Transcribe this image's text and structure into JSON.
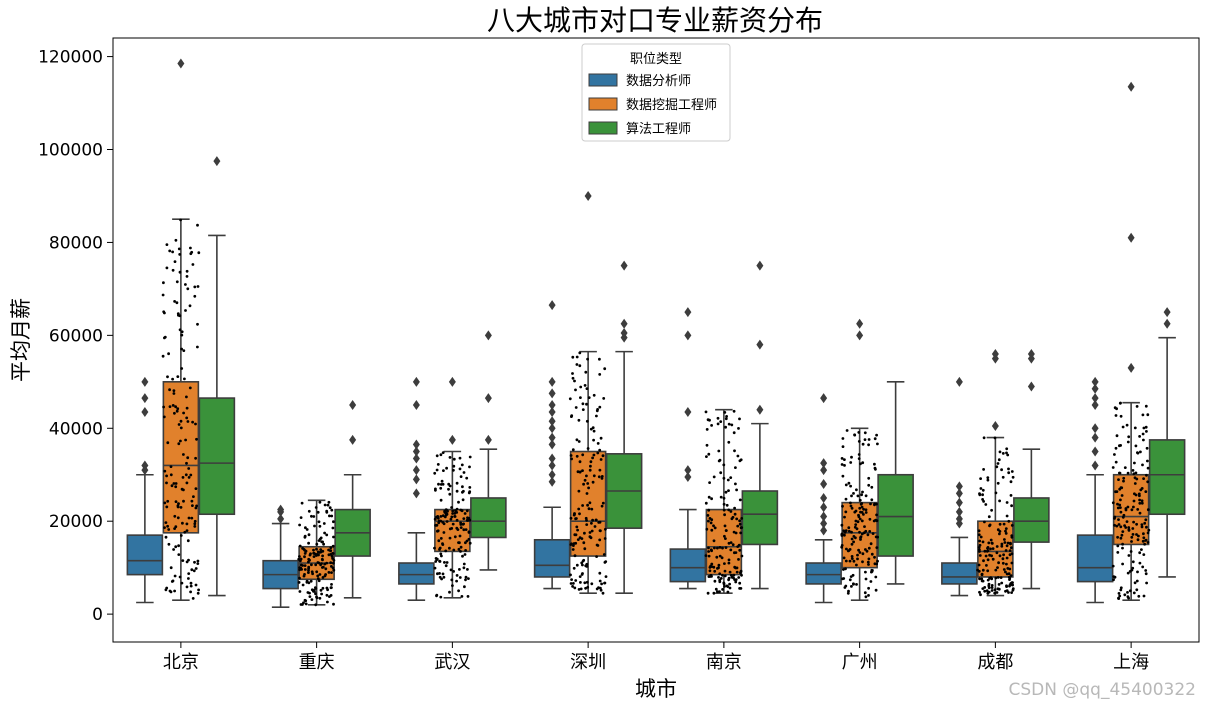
{
  "chart_data": {
    "type": "box",
    "title": "八大城市对口专业薪资分布",
    "xlabel": "城市",
    "ylabel": "平均月薪",
    "categories": [
      "北京",
      "重庆",
      "武汉",
      "深圳",
      "南京",
      "广州",
      "成都",
      "上海"
    ],
    "ylim": [
      -6000,
      124000
    ],
    "yticks": [
      0,
      20000,
      40000,
      60000,
      80000,
      100000,
      120000
    ],
    "legend": {
      "title": "职位类型",
      "position": "top-center"
    },
    "grid": false,
    "series": [
      {
        "name": "数据分析师",
        "color": "#3274a1",
        "boxes": [
          {
            "whislo": 2500,
            "q1": 8500,
            "med": 11500,
            "q3": 17000,
            "whishi": 30000,
            "fliers": [
              31000,
              32000,
              43500,
              46500,
              50000
            ]
          },
          {
            "whislo": 1500,
            "q1": 5500,
            "med": 8500,
            "q3": 11500,
            "whishi": 19500,
            "fliers": [
              20500,
              22000,
              22500
            ]
          },
          {
            "whislo": 3000,
            "q1": 6500,
            "med": 8500,
            "q3": 11000,
            "whishi": 17500,
            "fliers": [
              26000,
              29000,
              31000,
              33500,
              35000,
              36500,
              45000,
              50000
            ]
          },
          {
            "whislo": 5500,
            "q1": 8000,
            "med": 10500,
            "q3": 16000,
            "whishi": 23000,
            "fliers": [
              28500,
              30000,
              32000,
              33500,
              36500,
              38000,
              40000,
              41500,
              43500,
              45000,
              47500,
              50000,
              66500
            ]
          },
          {
            "whislo": 5500,
            "q1": 7000,
            "med": 10000,
            "q3": 14000,
            "whishi": 22500,
            "fliers": [
              29500,
              31000,
              43500,
              60000,
              65000
            ]
          },
          {
            "whislo": 2500,
            "q1": 6500,
            "med": 8500,
            "q3": 11000,
            "whishi": 16000,
            "fliers": [
              18000,
              19500,
              21000,
              23000,
              25000,
              28000,
              31000,
              32500,
              46500
            ]
          },
          {
            "whislo": 4000,
            "q1": 6500,
            "med": 8000,
            "q3": 11000,
            "whishi": 16500,
            "fliers": [
              19500,
              20500,
              22000,
              24000,
              26000,
              27500,
              50000
            ]
          },
          {
            "whislo": 2500,
            "q1": 7000,
            "med": 10000,
            "q3": 17000,
            "whishi": 30000,
            "fliers": [
              32000,
              35000,
              38000,
              40000,
              45000,
              46500,
              48500,
              50000
            ]
          }
        ]
      },
      {
        "name": "数据挖掘工程师",
        "color": "#e1812c",
        "boxes": [
          {
            "whislo": 3000,
            "q1": 17500,
            "med": 32000,
            "q3": 50000,
            "whishi": 85000,
            "fliers": [
              118500
            ]
          },
          {
            "whislo": 2000,
            "q1": 7500,
            "med": 11000,
            "q3": 14500,
            "whishi": 24500,
            "fliers": []
          },
          {
            "whislo": 3500,
            "q1": 13500,
            "med": 20000,
            "q3": 22500,
            "whishi": 35000,
            "fliers": [
              37500,
              50000
            ]
          },
          {
            "whislo": 4500,
            "q1": 12500,
            "med": 20000,
            "q3": 35000,
            "whishi": 56500,
            "fliers": [
              90000
            ]
          },
          {
            "whislo": 4500,
            "q1": 8500,
            "med": 14500,
            "q3": 22500,
            "whishi": 44000,
            "fliers": []
          },
          {
            "whislo": 3000,
            "q1": 10000,
            "med": 17500,
            "q3": 24000,
            "whishi": 40000,
            "fliers": [
              60000,
              62500
            ]
          },
          {
            "whislo": 4000,
            "q1": 8000,
            "med": 13500,
            "q3": 20000,
            "whishi": 38000,
            "fliers": [
              40500,
              55000,
              56000
            ]
          },
          {
            "whislo": 3000,
            "q1": 15000,
            "med": 21000,
            "q3": 30000,
            "whishi": 45500,
            "fliers": [
              53000,
              81000,
              113500
            ]
          }
        ]
      },
      {
        "name": "算法工程师",
        "color": "#3a923a",
        "boxes": [
          {
            "whislo": 4000,
            "q1": 21500,
            "med": 32500,
            "q3": 46500,
            "whishi": 81500,
            "fliers": [
              97500
            ]
          },
          {
            "whislo": 3500,
            "q1": 12500,
            "med": 17500,
            "q3": 22500,
            "whishi": 30000,
            "fliers": [
              37500,
              45000
            ]
          },
          {
            "whislo": 9500,
            "q1": 16500,
            "med": 20000,
            "q3": 25000,
            "whishi": 35500,
            "fliers": [
              37500,
              46500,
              60000
            ]
          },
          {
            "whislo": 4500,
            "q1": 18500,
            "med": 26500,
            "q3": 34500,
            "whishi": 56500,
            "fliers": [
              59500,
              60500,
              62500,
              75000
            ]
          },
          {
            "whislo": 5500,
            "q1": 15000,
            "med": 21500,
            "q3": 26500,
            "whishi": 41000,
            "fliers": [
              44000,
              58000,
              75000
            ]
          },
          {
            "whislo": 6500,
            "q1": 12500,
            "med": 21000,
            "q3": 30000,
            "whishi": 50000,
            "fliers": []
          },
          {
            "whislo": 5500,
            "q1": 15500,
            "med": 20000,
            "q3": 25000,
            "whishi": 35500,
            "fliers": [
              49000,
              55000,
              56000
            ]
          },
          {
            "whislo": 8000,
            "q1": 21500,
            "med": 30000,
            "q3": 37500,
            "whishi": 59500,
            "fliers": [
              62500,
              65000
            ]
          }
        ]
      }
    ]
  },
  "watermark": "CSDN @qq_45400322"
}
